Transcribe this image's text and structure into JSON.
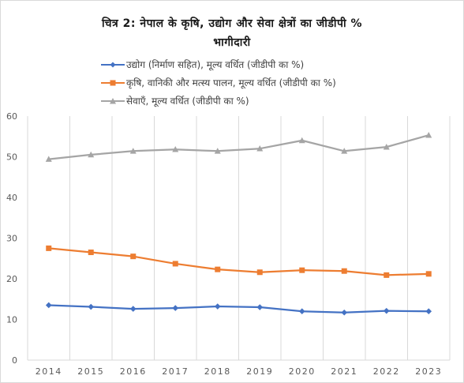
{
  "title": {
    "line1": "चित्र 2: नेपाल के कृषि, उद्योग और सेवा क्षेत्रों का जीडीपी %",
    "line2": "भागीदारी"
  },
  "chart_data": {
    "type": "line",
    "title": "चित्र 2: नेपाल के कृषि, उद्योग और सेवा क्षेत्रों का जीडीपी % भागीदारी",
    "categories": [
      "2014",
      "2015",
      "2016",
      "2017",
      "2018",
      "2019",
      "2020",
      "2021",
      "2022",
      "2023"
    ],
    "ylim": [
      0,
      60
    ],
    "yticks": [
      "0",
      "10",
      "20",
      "30",
      "40",
      "50",
      "60"
    ],
    "grid": "vertical",
    "legend_position": "top-left",
    "series": [
      {
        "name": "उद्योग (निर्माण सहित), मूल्य वर्धित (जीडीपी का %)",
        "marker": "diamond",
        "color": "#4472C4",
        "values": [
          13.5,
          13.1,
          12.6,
          12.8,
          13.2,
          13.0,
          12.0,
          11.7,
          12.1,
          12.0
        ]
      },
      {
        "name": "कृषि, वानिकी और मत्स्य पालन, मूल्य वर्धित (जीडीपी का %)",
        "marker": "square",
        "color": "#ED7D31",
        "values": [
          27.5,
          26.5,
          25.5,
          23.7,
          22.3,
          21.6,
          22.1,
          21.9,
          20.9,
          21.2
        ]
      },
      {
        "name": "सेवाएँ, मूल्य वर्धित (जीडीपी का %)",
        "marker": "triangle",
        "color": "#A5A5A5",
        "values": [
          49.4,
          50.5,
          51.4,
          51.8,
          51.4,
          52.0,
          54.0,
          51.4,
          52.4,
          55.3
        ]
      }
    ]
  }
}
